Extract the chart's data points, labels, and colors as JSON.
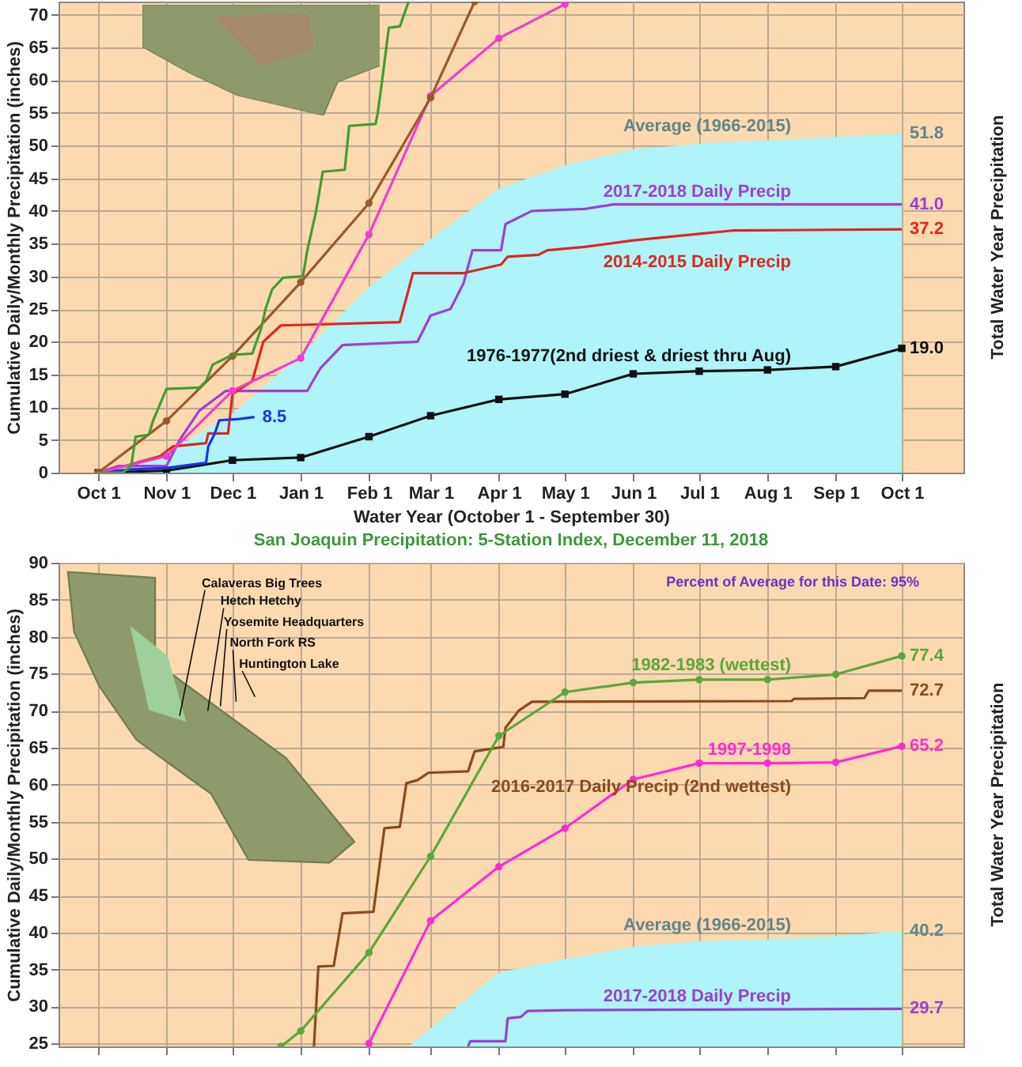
{
  "chart_data": [
    {
      "type": "line",
      "xlabel": "Water Year (October 1 - September 30)",
      "ylabel": "Cumulative Daily/Monthly Precipitation (inches)",
      "y2label": "Total Water Year Precipitation",
      "xlim": [
        "2018-09-13",
        "2019-10-29"
      ],
      "ylim": [
        0,
        72
      ],
      "xticks": [
        {
          "value": "2018-10-01",
          "label": "Oct 1"
        },
        {
          "value": "2018-11-01",
          "label": "Nov 1"
        },
        {
          "value": "2018-12-01",
          "label": "Dec 1"
        },
        {
          "value": "2019-01-01",
          "label": "Jan 1"
        },
        {
          "value": "2019-02-01",
          "label": "Feb 1"
        },
        {
          "value": "2019-03-01",
          "label": "Mar 1"
        },
        {
          "value": "2019-04-01",
          "label": "Apr 1"
        },
        {
          "value": "2019-05-01",
          "label": "May 1"
        },
        {
          "value": "2019-06-01",
          "label": "Jun 1"
        },
        {
          "value": "2019-07-01",
          "label": "Jul 1"
        },
        {
          "value": "2019-08-01",
          "label": "Aug 1"
        },
        {
          "value": "2019-09-01",
          "label": "Sep 1"
        },
        {
          "value": "2019-10-01",
          "label": "Oct 1"
        }
      ],
      "yticks": [
        0,
        5,
        10,
        15,
        20,
        25,
        30,
        35,
        40,
        45,
        50,
        55,
        60,
        65,
        70
      ],
      "grid": true,
      "series": [
        {
          "name": "Average (1966-2015)",
          "type": "area",
          "color": "#aef4f8",
          "x": [
            "2018-10-01",
            "2018-11-01",
            "2018-12-01",
            "2019-01-01",
            "2019-02-01",
            "2019-03-01",
            "2019-04-01",
            "2019-05-01",
            "2019-06-01",
            "2019-07-01",
            "2019-08-01",
            "2019-09-01",
            "2019-10-01"
          ],
          "values": [
            0,
            3,
            9,
            18,
            28.4,
            35.7,
            43.4,
            47,
            49.4,
            50.3,
            50.8,
            51.3,
            51.8
          ],
          "value_labels": [
            null,
            null,
            null,
            null,
            null,
            null,
            null,
            null,
            null,
            null,
            null,
            null,
            "51.8"
          ]
        },
        {
          "name": "2017-2018 Daily Precip",
          "color": "#a040d0",
          "x": [
            "2018-10-01",
            "2018-10-10",
            "2018-11-01",
            "2018-11-07",
            "2018-11-16",
            "2018-11-28",
            "2019-01-04",
            "2019-01-10",
            "2019-01-20",
            "2019-02-23",
            "2019-03-01",
            "2019-03-10",
            "2019-03-16",
            "2019-03-20",
            "2019-04-02",
            "2019-04-04",
            "2019-04-16",
            "2019-05-10",
            "2019-05-23",
            "2019-10-01"
          ],
          "values": [
            0,
            1,
            1,
            5,
            9.5,
            12.5,
            12.5,
            16,
            19.5,
            20,
            24,
            25,
            29,
            34,
            34,
            38,
            40,
            40.3,
            41,
            41
          ],
          "value_labels": [
            null,
            null,
            null,
            null,
            null,
            null,
            null,
            null,
            null,
            null,
            null,
            null,
            null,
            null,
            null,
            null,
            null,
            null,
            null,
            "41.0"
          ]
        },
        {
          "name": "2014-2015 Daily Precip",
          "color": "#e0261e",
          "x": [
            "2018-10-01",
            "2018-10-13",
            "2018-10-29",
            "2018-11-04",
            "2018-11-19",
            "2018-11-20",
            "2018-11-29",
            "2018-12-01",
            "2018-12-10",
            "2018-12-15",
            "2018-12-23",
            "2019-02-15",
            "2019-02-21",
            "2019-03-16",
            "2019-03-29",
            "2019-04-02",
            "2019-04-05",
            "2019-04-19",
            "2019-04-23",
            "2019-05-10",
            "2019-06-01",
            "2019-07-01",
            "2019-07-16",
            "2019-10-01"
          ],
          "values": [
            0,
            1,
            2.5,
            4,
            4.5,
            6,
            6,
            12,
            14,
            20,
            22.5,
            23,
            30.5,
            30.5,
            31.5,
            31.8,
            33,
            33.3,
            34,
            34.5,
            35.5,
            36.5,
            37,
            37.2
          ],
          "value_labels": [
            null,
            null,
            null,
            null,
            null,
            null,
            null,
            null,
            null,
            null,
            null,
            null,
            null,
            null,
            null,
            null,
            null,
            null,
            null,
            null,
            null,
            null,
            null,
            "37.2"
          ]
        },
        {
          "name": "1976-1977(2nd driest & driest thru Aug)",
          "color": "#111111",
          "marker": "square",
          "x": [
            "2018-10-01",
            "2018-11-01",
            "2018-12-01",
            "2019-01-01",
            "2019-02-01",
            "2019-03-01",
            "2019-04-01",
            "2019-05-01",
            "2019-06-01",
            "2019-07-01",
            "2019-08-01",
            "2019-09-01",
            "2019-10-01"
          ],
          "values": [
            0,
            0.3,
            1.9,
            2.3,
            5.5,
            8.7,
            11.2,
            12.0,
            15.1,
            15.5,
            15.7,
            16.2,
            19.0
          ],
          "value_labels": [
            null,
            null,
            null,
            null,
            null,
            null,
            null,
            null,
            null,
            null,
            null,
            null,
            "19.0"
          ]
        },
        {
          "color": "#1a35e0",
          "x": [
            "2018-10-01",
            "2018-10-16",
            "2018-11-01",
            "2018-11-19",
            "2018-11-20",
            "2018-11-23",
            "2018-11-25",
            "2018-12-04",
            "2018-12-11"
          ],
          "values": [
            0,
            0.5,
            0.7,
            1.5,
            4,
            6,
            8,
            8.2,
            8.5
          ],
          "value_labels": [
            null,
            null,
            null,
            null,
            null,
            null,
            null,
            null,
            "8.5"
          ]
        },
        {
          "color": "#f03ccf",
          "marker": "circle",
          "x": [
            "2018-10-01",
            "2018-11-01",
            "2018-12-01",
            "2019-01-01",
            "2019-02-01",
            "2019-03-01",
            "2019-04-01",
            "2019-05-01"
          ],
          "values": [
            0,
            2.5,
            12.5,
            17.5,
            36.4,
            57.6,
            66.4,
            71.6
          ]
        },
        {
          "color": "#9a5a2a",
          "marker": "circle",
          "x": [
            "2018-10-01",
            "2018-11-01",
            "2018-12-01",
            "2019-01-01",
            "2019-02-01",
            "2019-03-01",
            "2019-03-21"
          ],
          "values": [
            0,
            7.9,
            17.8,
            29.1,
            41.2,
            57.3,
            72
          ]
        },
        {
          "color": "#3f9f2f",
          "x": [
            "2018-10-01",
            "2018-10-12",
            "2018-10-16",
            "2018-10-18",
            "2018-10-24",
            "2018-10-26",
            "2018-11-01",
            "2018-11-16",
            "2018-11-19",
            "2018-11-22",
            "2018-12-01",
            "2018-12-10",
            "2018-12-14",
            "2018-12-16",
            "2018-12-19",
            "2018-12-24",
            "2019-01-02",
            "2019-01-04",
            "2019-01-08",
            "2019-01-11",
            "2019-01-21",
            "2019-01-23",
            "2019-02-04",
            "2019-02-05",
            "2019-02-07",
            "2019-02-10",
            "2019-02-15",
            "2019-02-19"
          ],
          "values": [
            0,
            0,
            1,
            5.5,
            5.8,
            8,
            12.8,
            13,
            14,
            16.5,
            18,
            18.2,
            22,
            25,
            28,
            29.8,
            30,
            34,
            40,
            46,
            46.3,
            53,
            53.3,
            55,
            60,
            68,
            68.2,
            72
          ]
        }
      ]
    },
    {
      "type": "line",
      "title": "San Joaquin Precipitation: 5-Station Index, December 11, 2018",
      "ylabel": "Cumulative Daily/Monthly Precipitation (inches)",
      "y2label": "Total Water Year Precipitation",
      "xlim": [
        "2018-09-13",
        "2019-10-29"
      ],
      "ylim": [
        24.6,
        90
      ],
      "xticks": [
        {
          "value": "2018-10-01",
          "label": null
        },
        {
          "value": "2018-11-01",
          "label": null
        },
        {
          "value": "2018-12-01",
          "label": null
        },
        {
          "value": "2019-01-01",
          "label": null
        },
        {
          "value": "2019-02-01",
          "label": null
        },
        {
          "value": "2019-03-01",
          "label": null
        },
        {
          "value": "2019-04-01",
          "label": null
        },
        {
          "value": "2019-05-01",
          "label": null
        },
        {
          "value": "2019-06-01",
          "label": null
        },
        {
          "value": "2019-07-01",
          "label": null
        },
        {
          "value": "2019-08-01",
          "label": null
        },
        {
          "value": "2019-09-01",
          "label": null
        },
        {
          "value": "2019-10-01",
          "label": null
        }
      ],
      "yticks": [
        25,
        30,
        35,
        40,
        45,
        50,
        55,
        60,
        65,
        70,
        75,
        80,
        85,
        90
      ],
      "grid": true,
      "tick_labels": "y",
      "annotations": [
        "Percent of Average for this Date: 95%",
        "Calaveras Big Trees",
        "Hetch Hetchy",
        "Yosemite Headquarters",
        "North Fork RS",
        "Huntington Lake"
      ],
      "series": [
        {
          "name": "Average (1966-2015)",
          "type": "area",
          "color": "#aef4f8",
          "x": [
            "2019-02-19",
            "2019-04-01",
            "2019-05-01",
            "2019-06-01",
            "2019-07-01",
            "2019-08-01",
            "2019-09-01",
            "2019-10-01"
          ],
          "values": [
            24.6,
            34.6,
            36.4,
            38.1,
            38.8,
            39.1,
            39.5,
            40.2
          ],
          "value_labels": [
            null,
            null,
            null,
            null,
            null,
            null,
            null,
            "40.2"
          ]
        },
        {
          "name": "2017-2018 Daily Precip",
          "color": "#9b3fd0",
          "x": [
            "2019-03-18",
            "2019-03-19",
            "2019-04-04",
            "2019-04-05",
            "2019-04-11",
            "2019-04-14",
            "2019-05-01",
            "2019-10-01"
          ],
          "values": [
            24.6,
            25.3,
            25.3,
            28.4,
            28.6,
            29.4,
            29.5,
            29.7
          ],
          "value_labels": [
            null,
            null,
            null,
            null,
            null,
            null,
            null,
            "29.7"
          ]
        },
        {
          "name": "1997-1998",
          "color": "#ff2ad4",
          "marker": "circle",
          "x": [
            "2019-02-01",
            "2019-03-01",
            "2019-04-01",
            "2019-05-01",
            "2019-06-01",
            "2019-07-01",
            "2019-08-01",
            "2019-09-01",
            "2019-10-01"
          ],
          "values": [
            25.0,
            41.6,
            48.9,
            54.1,
            60.7,
            62.9,
            62.9,
            63.0,
            65.2
          ],
          "value_labels": [
            null,
            null,
            null,
            null,
            null,
            null,
            null,
            null,
            "65.2"
          ]
        },
        {
          "name": "2016-2017 Daily Precip (2nd wettest)",
          "color": "#8b4a1c",
          "x": [
            "2019-01-07",
            "2019-01-09",
            "2019-01-16",
            "2019-01-20",
            "2019-02-03",
            "2019-02-04",
            "2019-02-08",
            "2019-02-15",
            "2019-02-18",
            "2019-02-23",
            "2019-02-28",
            "2019-03-18",
            "2019-03-21",
            "2019-04-01",
            "2019-04-03",
            "2019-04-04",
            "2019-04-10",
            "2019-04-16",
            "2019-08-12",
            "2019-08-13",
            "2019-09-14",
            "2019-09-16",
            "2019-10-01"
          ],
          "values": [
            24.6,
            35.4,
            35.5,
            42.6,
            42.8,
            45,
            54.1,
            54.3,
            60.2,
            60.6,
            61.6,
            61.8,
            64.5,
            65.0,
            65.1,
            67.7,
            70,
            71.2,
            71.3,
            71.6,
            71.7,
            72.7,
            72.7
          ],
          "value_labels": [
            null,
            null,
            null,
            null,
            null,
            null,
            null,
            null,
            null,
            null,
            null,
            null,
            null,
            null,
            null,
            null,
            null,
            null,
            null,
            null,
            null,
            null,
            "72.7"
          ]
        },
        {
          "name": "1982-1983 (wettest)",
          "color": "#5aa83a",
          "marker": "circle",
          "x": [
            "2018-12-23",
            "2019-01-01",
            "2019-02-01",
            "2019-03-01",
            "2019-04-01",
            "2019-05-01",
            "2019-06-01",
            "2019-07-01",
            "2019-08-01",
            "2019-09-01",
            "2019-10-01"
          ],
          "values": [
            24.6,
            26.7,
            37.3,
            50.3,
            66.6,
            72.5,
            73.8,
            74.2,
            74.2,
            74.9,
            77.4
          ],
          "value_labels": [
            null,
            null,
            null,
            null,
            null,
            null,
            null,
            null,
            null,
            null,
            "77.4"
          ]
        }
      ]
    }
  ]
}
